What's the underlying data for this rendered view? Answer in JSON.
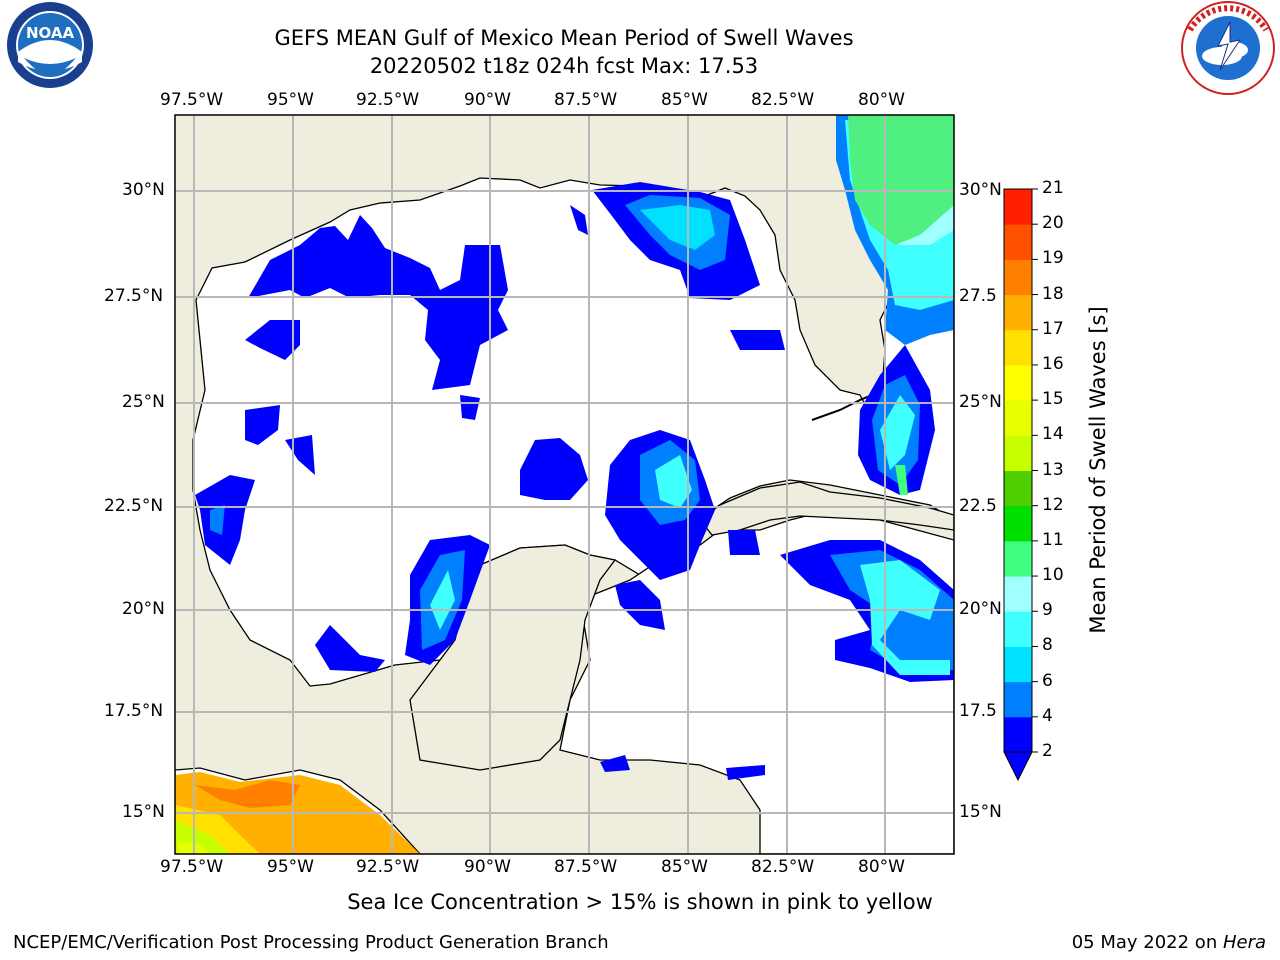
{
  "header": {
    "title_line1": "GEFS MEAN Gulf of Mexico Mean Period of Swell Waves",
    "title_line2": "20220502 t18z 024h fcst   Max: 17.53"
  },
  "logos": {
    "left": {
      "name": "noaa-logo",
      "text": "NOAA",
      "ring_text": "NATIONAL OCEANIC AND ATMOSPHERIC ADMINISTRATION · U.S. DEPARTMENT OF COMMERCE"
    },
    "right": {
      "name": "nws-logo",
      "ring_text": "NATIONAL WEATHER SERVICE"
    }
  },
  "map": {
    "lon_labels": [
      "97.5°W",
      "95°W",
      "92.5°W",
      "90°W",
      "87.5°W",
      "85°W",
      "82.5°W",
      "80°W"
    ],
    "lat_labels": [
      "30°N",
      "27.5°N",
      "25°N",
      "22.5°N",
      "20°N",
      "17.5°N",
      "15°N"
    ],
    "lat_labels_right": [
      "30°N",
      "27.5",
      "25°N",
      "22.5",
      "20°N",
      "17.5",
      "15°N"
    ],
    "extent": {
      "lon": [
        -98,
        -78.3
      ],
      "lat": [
        14,
        31.6
      ]
    },
    "colors": {
      "land": "#efeede",
      "ocean": "#ffffff",
      "grid": "#b8b8b8"
    }
  },
  "colorbar": {
    "label": "Mean Period of Swell Waves [s]",
    "ticks": [
      "2",
      "4",
      "6",
      "8",
      "9",
      "10",
      "11",
      "12",
      "13",
      "14",
      "15",
      "16",
      "17",
      "18",
      "19",
      "20",
      "21"
    ],
    "colors": [
      "#0000ff",
      "#0080ff",
      "#00e0ff",
      "#40ffff",
      "#a0ffff",
      "#40ff80",
      "#00e000",
      "#50d000",
      "#c8ff00",
      "#e8ff00",
      "#ffff00",
      "#ffe000",
      "#ffb000",
      "#ff8000",
      "#ff5000",
      "#ff2000",
      "#ff0000"
    ],
    "extend": "min"
  },
  "note": "Sea Ice Concentration > 15% is shown in pink to yellow",
  "footer": {
    "left": "NCEP/EMC/Verification Post Processing Product Generation Branch",
    "right_date": "05 May 2022 on ",
    "right_host": "Hera"
  }
}
